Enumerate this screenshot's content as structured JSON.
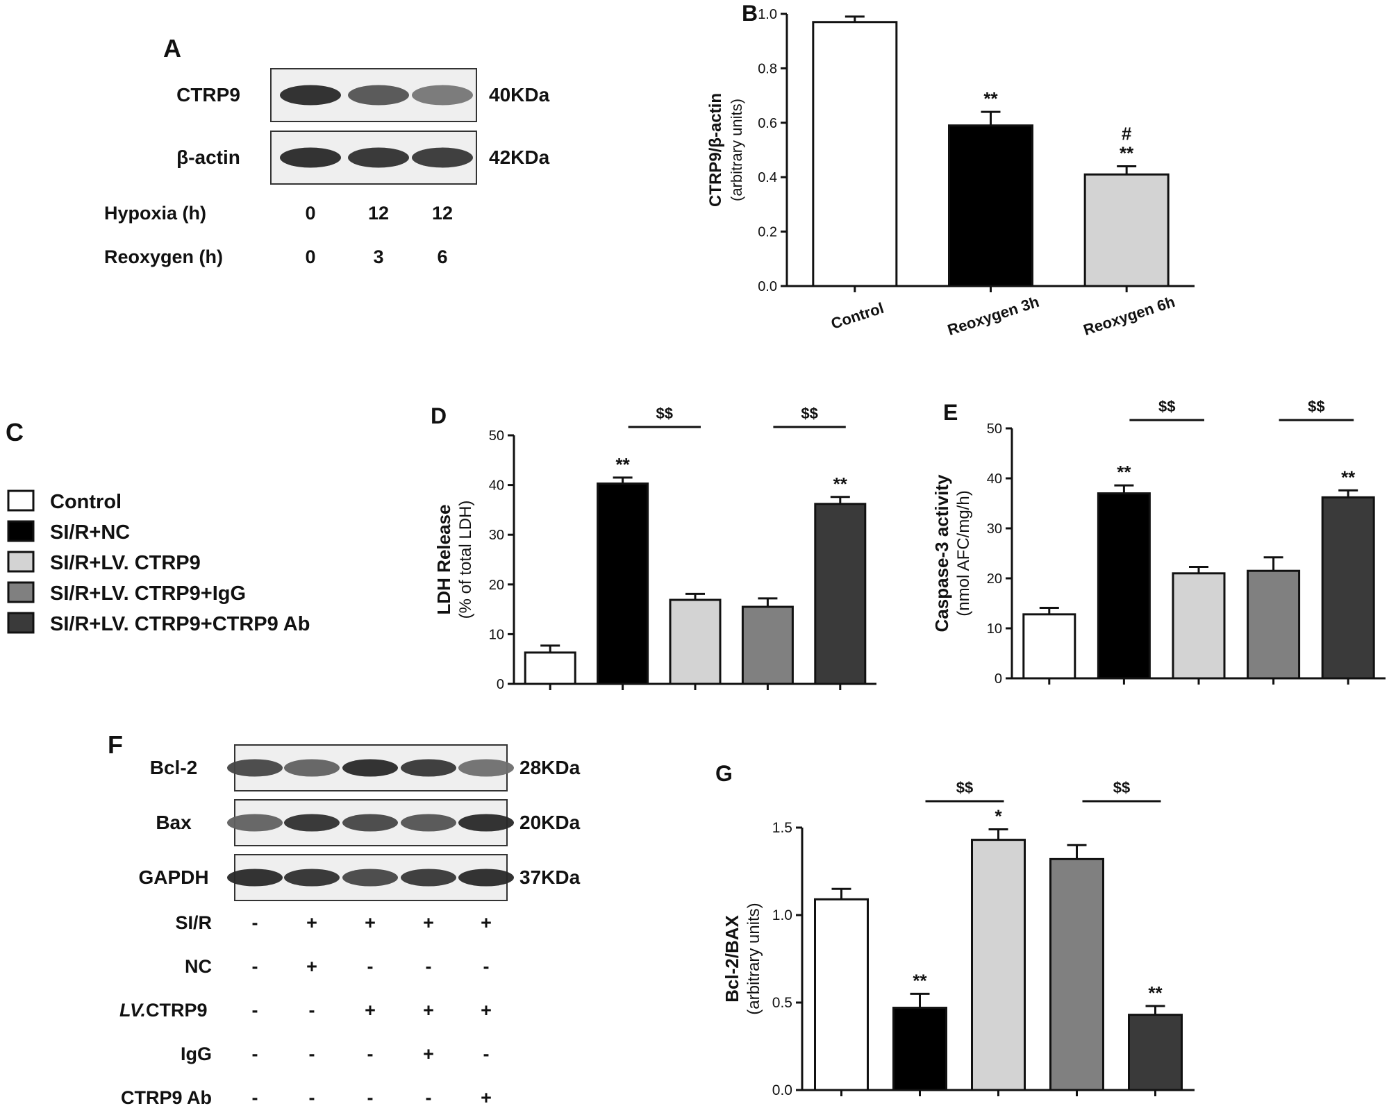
{
  "panels": {
    "A": {
      "letter": "A",
      "rows": [
        {
          "protein": "CTRP9",
          "size": "40KDa",
          "bands": [
            1.0,
            0.7,
            0.45
          ]
        },
        {
          "protein": "β-actin",
          "size": "42KDa",
          "bands": [
            1.0,
            0.95,
            0.9
          ]
        }
      ],
      "conditions": [
        {
          "label": "Hypoxia (h)",
          "values": [
            "0",
            "12",
            "12"
          ]
        },
        {
          "label": "Reoxygen (h)",
          "values": [
            "0",
            "3",
            "6"
          ]
        }
      ]
    },
    "C": {
      "letter": "C",
      "legend": [
        {
          "label": "Control",
          "color": "#ffffff"
        },
        {
          "label": "SI/R+NC",
          "color": "#000000"
        },
        {
          "label": "SI/R+LV. CTRP9",
          "color": "#d3d3d3"
        },
        {
          "label": "SI/R+LV. CTRP9+IgG",
          "color": "#808080"
        },
        {
          "label": "SI/R+LV. CTRP9+CTRP9 Ab",
          "color": "#3a3a3a"
        }
      ]
    },
    "F": {
      "letter": "F",
      "rows": [
        {
          "protein": "Bcl-2",
          "size": "28KDa",
          "bands": [
            0.8,
            0.6,
            1.0,
            0.9,
            0.5
          ]
        },
        {
          "protein": "Bax",
          "size": "20KDa",
          "bands": [
            0.6,
            0.95,
            0.8,
            0.7,
            1.0
          ]
        },
        {
          "protein": "GAPDH",
          "size": "37KDa",
          "bands": [
            1.0,
            0.95,
            0.8,
            0.9,
            1.0
          ]
        }
      ],
      "conditions": [
        {
          "label": "SI/R",
          "italic_prefix": "",
          "values": [
            "-",
            "+",
            "+",
            "+",
            "+"
          ]
        },
        {
          "label": "NC",
          "italic_prefix": "",
          "values": [
            "-",
            "+",
            "-",
            "-",
            "-"
          ]
        },
        {
          "label": " CTRP9",
          "italic_prefix": "LV.",
          "values": [
            "-",
            "-",
            "+",
            "+",
            "+"
          ]
        },
        {
          "label": "IgG",
          "italic_prefix": "",
          "values": [
            "-",
            "-",
            "-",
            "+",
            "-"
          ]
        },
        {
          "label": "CTRP9 Ab",
          "italic_prefix": "",
          "values": [
            "-",
            "-",
            "-",
            "-",
            "+"
          ]
        }
      ]
    }
  },
  "chart_data": [
    {
      "id": "B",
      "letter": "B",
      "type": "bar",
      "ylabel_main": "CTRP9/β-actin",
      "ylabel_sub": "(arbitrary units)",
      "ylim": [
        0,
        1.0
      ],
      "yticks": [
        "0.0",
        "0.2",
        "0.4",
        "0.6",
        "0.8",
        "1.0"
      ],
      "categories": [
        "Control",
        "Reoxygen 3h",
        "Reoxygen 6h"
      ],
      "values": [
        0.97,
        0.59,
        0.41
      ],
      "errors": [
        0.02,
        0.05,
        0.03
      ],
      "colors": [
        "#ffffff",
        "#000000",
        "#d3d3d3"
      ],
      "annotations": [
        [
          "",
          ""
        ],
        [
          "**"
        ],
        [
          "#",
          "**"
        ]
      ],
      "significance": []
    },
    {
      "id": "D",
      "letter": "D",
      "type": "bar",
      "ylabel_main": "LDH Release",
      "ylabel_sub": "(% of total LDH)",
      "ylim": [
        0,
        50
      ],
      "yticks": [
        "0",
        "10",
        "20",
        "30",
        "40",
        "50"
      ],
      "categories": [
        "",
        "",
        "",
        "",
        ""
      ],
      "values": [
        6.3,
        40.3,
        16.9,
        15.5,
        36.2
      ],
      "errors": [
        1.4,
        1.2,
        1.2,
        1.7,
        1.4
      ],
      "colors": [
        "#ffffff",
        "#000000",
        "#d3d3d3",
        "#808080",
        "#3a3a3a"
      ],
      "annotations": [
        [],
        [
          "**"
        ],
        [],
        [],
        [
          "**"
        ]
      ],
      "significance": [
        {
          "from": 1,
          "to": 2,
          "label": "$$"
        },
        {
          "from": 3,
          "to": 4,
          "label": "$$"
        }
      ]
    },
    {
      "id": "E",
      "letter": "E",
      "type": "bar",
      "ylabel_main": "Caspase-3 activity",
      "ylabel_sub": "(nmol AFC/mg/h)",
      "ylim": [
        0,
        50
      ],
      "yticks": [
        "0",
        "10",
        "20",
        "30",
        "40",
        "50"
      ],
      "categories": [
        "",
        "",
        "",
        "",
        ""
      ],
      "values": [
        12.8,
        37.0,
        21.0,
        21.5,
        36.2
      ],
      "errors": [
        1.3,
        1.6,
        1.3,
        2.7,
        1.4
      ],
      "colors": [
        "#ffffff",
        "#000000",
        "#d3d3d3",
        "#808080",
        "#3a3a3a"
      ],
      "annotations": [
        [],
        [
          "**"
        ],
        [],
        [],
        [
          "**"
        ]
      ],
      "significance": [
        {
          "from": 1,
          "to": 2,
          "label": "$$"
        },
        {
          "from": 3,
          "to": 4,
          "label": "$$"
        }
      ]
    },
    {
      "id": "G",
      "letter": "G",
      "type": "bar",
      "ylabel_main": "Bcl-2/BAX",
      "ylabel_sub": "(arbitrary units)",
      "ylim": [
        0,
        1.5
      ],
      "yticks": [
        "0.0",
        "0.5",
        "1.0",
        "1.5"
      ],
      "categories": [
        "",
        "",
        "",
        "",
        ""
      ],
      "values": [
        1.09,
        0.47,
        1.43,
        1.32,
        0.43
      ],
      "errors": [
        0.06,
        0.08,
        0.06,
        0.08,
        0.05
      ],
      "colors": [
        "#ffffff",
        "#000000",
        "#d3d3d3",
        "#808080",
        "#3a3a3a"
      ],
      "annotations": [
        [],
        [
          "**"
        ],
        [
          "*"
        ],
        [],
        [
          "**"
        ]
      ],
      "significance": [
        {
          "from": 1,
          "to": 2,
          "label": "$$"
        },
        {
          "from": 3,
          "to": 4,
          "label": "$$"
        }
      ]
    }
  ]
}
